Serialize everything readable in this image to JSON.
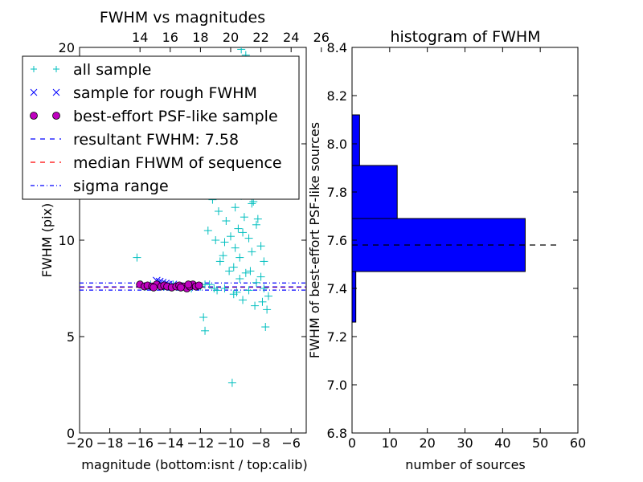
{
  "chart_data": [
    {
      "type": "scatter",
      "title": "FWHM vs magnitudes",
      "xlabel": "magnitude (bottom:isnt / top:calib)",
      "ylabel": "FWHM (pix)",
      "xlim": [
        -20,
        -5
      ],
      "ylim": [
        0,
        20
      ],
      "xticks": [
        "−20",
        "−18",
        "−16",
        "−14",
        "−12",
        "−10",
        "−8",
        "−6"
      ],
      "xtick_values": [
        -20,
        -18,
        -16,
        -14,
        -12,
        -10,
        -8,
        -6
      ],
      "yticks": [
        "0",
        "5",
        "10",
        "15",
        "20"
      ],
      "ytick_values": [
        0,
        5,
        10,
        15,
        20
      ],
      "top_axis": {
        "ticks": [
          "14",
          "16",
          "18",
          "20",
          "22",
          "24",
          "26"
        ],
        "tick_values": [
          14,
          16,
          18,
          20,
          22,
          24,
          26
        ],
        "offset": 30
      },
      "grid": false,
      "legend_position": "upper-left",
      "legend": [
        {
          "label": "all sample",
          "marker": "plus",
          "color": "#00bfbf"
        },
        {
          "label": "sample for rough FWHM",
          "marker": "x",
          "color": "#0000ff"
        },
        {
          "label": "best-effort PSF-like sample",
          "marker": "circle",
          "color": "#bf00bf"
        },
        {
          "label": "resultant FWHM: 7.58",
          "style": "dashed",
          "color": "#0000ff"
        },
        {
          "label": "median FHWM of sequence",
          "style": "dashed",
          "color": "#ff0000"
        },
        {
          "label": "sigma range",
          "style": "dashdot",
          "color": "#0000ff"
        }
      ],
      "hlines": {
        "resultant_fwhm": 7.58,
        "median_fwhm": 7.56,
        "sigma_range": [
          7.41,
          7.78
        ]
      },
      "series": [
        {
          "name": "all sample",
          "marker": "plus",
          "color": "#00bfbf",
          "points": [
            [
              -16.2,
              9.1
            ],
            [
              -15.9,
              7.7
            ],
            [
              -15.6,
              7.6
            ],
            [
              -15.3,
              7.7
            ],
            [
              -15.0,
              7.6
            ],
            [
              -14.7,
              7.7
            ],
            [
              -14.4,
              7.6
            ],
            [
              -14.1,
              7.6
            ],
            [
              -13.8,
              7.7
            ],
            [
              -13.5,
              7.6
            ],
            [
              -13.2,
              7.6
            ],
            [
              -12.9,
              7.6
            ],
            [
              -12.6,
              7.5
            ],
            [
              -12.3,
              7.6
            ],
            [
              -12.0,
              7.6
            ],
            [
              -11.7,
              7.7
            ],
            [
              -11.4,
              7.7
            ],
            [
              -11.1,
              7.5
            ],
            [
              -11.8,
              6.0
            ],
            [
              -11.7,
              5.3
            ],
            [
              -9.9,
              2.6
            ],
            [
              -11.5,
              10.5
            ],
            [
              -11.2,
              12.1
            ],
            [
              -11.0,
              10.0
            ],
            [
              -10.8,
              11.5
            ],
            [
              -10.6,
              12.4
            ],
            [
              -10.5,
              9.2
            ],
            [
              -10.3,
              11.0
            ],
            [
              -10.2,
              13.6
            ],
            [
              -10.0,
              10.2
            ],
            [
              -9.9,
              12.9
            ],
            [
              -9.8,
              8.6
            ],
            [
              -9.7,
              11.7
            ],
            [
              -9.6,
              14.2
            ],
            [
              -9.5,
              10.6
            ],
            [
              -9.4,
              9.1
            ],
            [
              -9.3,
              12.3
            ],
            [
              -9.2,
              15.1
            ],
            [
              -9.1,
              11.2
            ],
            [
              -9.0,
              8.3
            ],
            [
              -8.9,
              13.4
            ],
            [
              -8.8,
              10.1
            ],
            [
              -8.7,
              16.0
            ],
            [
              -8.6,
              9.4
            ],
            [
              -8.5,
              12.0
            ],
            [
              -8.4,
              14.7
            ],
            [
              -8.3,
              7.8
            ],
            [
              -8.2,
              11.1
            ],
            [
              -8.1,
              13.2
            ],
            [
              -8.0,
              9.7
            ],
            [
              -7.9,
              6.8
            ],
            [
              -7.8,
              8.9
            ],
            [
              -7.7,
              5.5
            ],
            [
              -7.6,
              6.4
            ],
            [
              -7.5,
              7.1
            ],
            [
              -9.6,
              7.3
            ],
            [
              -9.2,
              6.9
            ],
            [
              -8.8,
              7.4
            ],
            [
              -8.4,
              6.6
            ],
            [
              -9.8,
              7.2
            ],
            [
              -10.4,
              7.5
            ],
            [
              -10.9,
              7.4
            ],
            [
              -9.1,
              16.4
            ],
            [
              -9.3,
              19.9
            ],
            [
              -9.0,
              19.6
            ],
            [
              -8.6,
              17.8
            ],
            [
              -8.9,
              18.5
            ],
            [
              -9.5,
              17.2
            ],
            [
              -8.2,
              15.6
            ],
            [
              -10.1,
              8.4
            ],
            [
              -10.7,
              8.9
            ],
            [
              -9.4,
              8.0
            ],
            [
              -8.7,
              8.4
            ],
            [
              -8.0,
              8.1
            ],
            [
              -7.8,
              7.5
            ],
            [
              -8.3,
              10.8
            ],
            [
              -9.7,
              9.6
            ],
            [
              -10.4,
              9.9
            ],
            [
              -9.2,
              10.4
            ],
            [
              -8.6,
              11.9
            ],
            [
              -8.1,
              12.6
            ]
          ]
        },
        {
          "name": "sample for rough FWHM",
          "marker": "x",
          "color": "#0000ff",
          "points": [
            [
              -14.9,
              7.9
            ],
            [
              -14.7,
              7.85
            ],
            [
              -14.5,
              7.8
            ],
            [
              -14.3,
              7.75
            ],
            [
              -14.1,
              7.7
            ],
            [
              -13.8,
              7.7
            ]
          ]
        },
        {
          "name": "best-effort PSF-like sample",
          "marker": "circle",
          "color": "#bf00bf",
          "points": [
            [
              -16.0,
              7.7
            ],
            [
              -15.7,
              7.6
            ],
            [
              -15.5,
              7.65
            ],
            [
              -15.2,
              7.6
            ],
            [
              -14.9,
              7.7
            ],
            [
              -14.6,
              7.6
            ],
            [
              -14.4,
              7.65
            ],
            [
              -14.2,
              7.6
            ],
            [
              -13.9,
              7.55
            ],
            [
              -13.6,
              7.6
            ],
            [
              -13.4,
              7.65
            ],
            [
              -13.1,
              7.6
            ],
            [
              -12.9,
              7.5
            ],
            [
              -12.7,
              7.6
            ],
            [
              -12.5,
              7.7
            ],
            [
              -12.3,
              7.6
            ],
            [
              -12.1,
              7.65
            ],
            [
              -13.3,
              7.55
            ],
            [
              -12.8,
              7.7
            ],
            [
              -15.1,
              7.55
            ]
          ]
        }
      ]
    },
    {
      "type": "bar",
      "orientation": "horizontal",
      "title": "histogram of FWHM",
      "xlabel": "number of sources",
      "ylabel": "FWHM of best-effort PSF-like sources",
      "xlim": [
        0,
        60
      ],
      "ylim": [
        6.8,
        8.4
      ],
      "xticks": [
        "0",
        "10",
        "20",
        "30",
        "40",
        "50",
        "60"
      ],
      "xtick_values": [
        0,
        10,
        20,
        30,
        40,
        50,
        60
      ],
      "yticks": [
        "6.8",
        "7.0",
        "7.2",
        "7.4",
        "7.6",
        "7.8",
        "8.0",
        "8.2",
        "8.4"
      ],
      "ytick_values": [
        6.8,
        7.0,
        7.2,
        7.4,
        7.6,
        7.8,
        8.0,
        8.2,
        8.4
      ],
      "grid": false,
      "bar_color": "#0000ff",
      "bins": [
        {
          "from": 7.26,
          "to": 7.47,
          "count": 1
        },
        {
          "from": 7.47,
          "to": 7.69,
          "count": 46
        },
        {
          "from": 7.69,
          "to": 7.91,
          "count": 12
        },
        {
          "from": 7.91,
          "to": 8.12,
          "count": 2
        }
      ],
      "reference_line": {
        "value": 7.58,
        "x_from": 0,
        "x_to": 55,
        "style": "dashed",
        "color": "#000000"
      }
    }
  ]
}
